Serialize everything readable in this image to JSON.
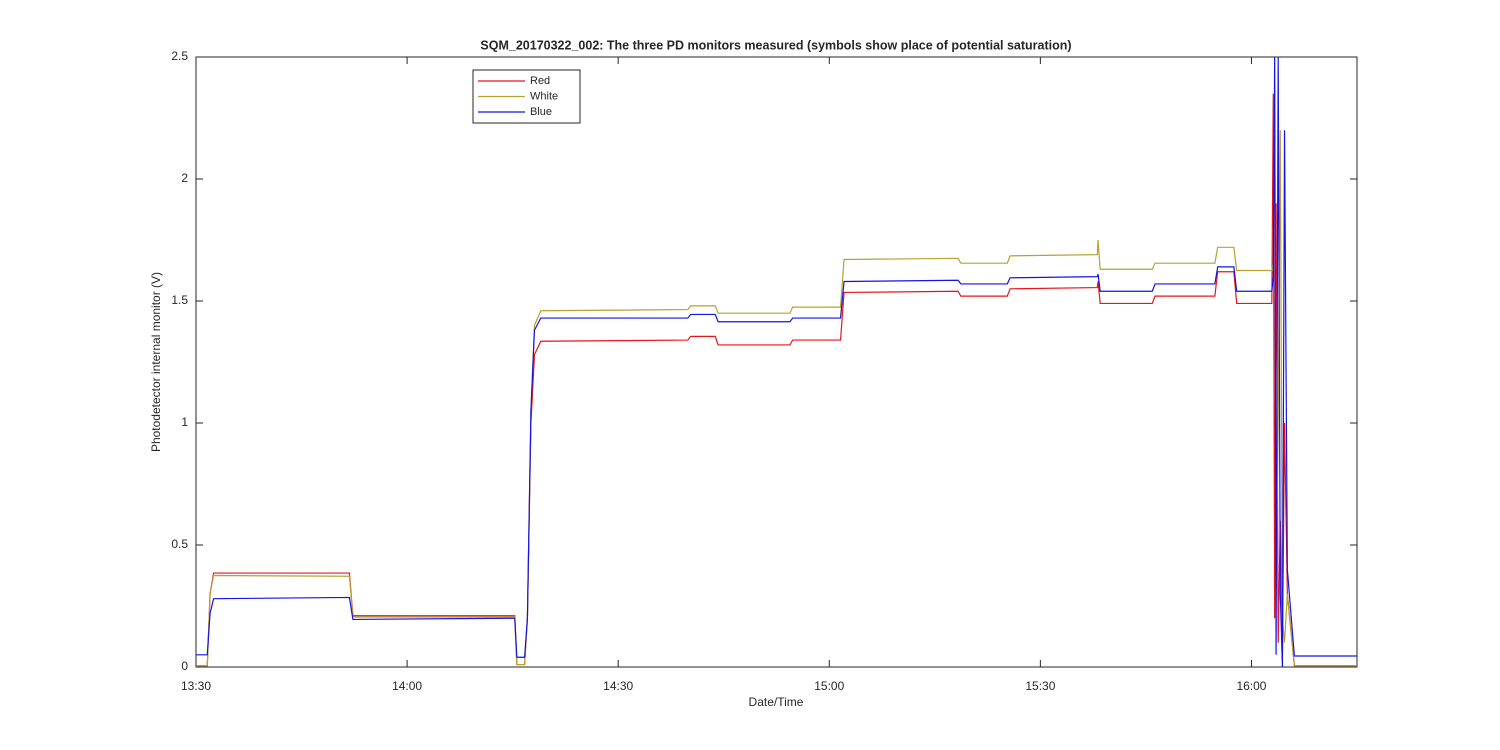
{
  "chart_data": {
    "type": "line",
    "title": "SQM_20170322_002: The three PD monitors measured (symbols show place of potential saturation)",
    "xlabel": "Date/Time",
    "ylabel": "Photodetector internal monitor (V)",
    "x": [
      810,
      811.6,
      812.0,
      812.5,
      831.8,
      832.3,
      855.3,
      855.6,
      856.7,
      857.1,
      857.6,
      858.1,
      859.0,
      879.9,
      880.3,
      883.8,
      884.2,
      894.4,
      894.8,
      901.6,
      902.1,
      918.3,
      918.7,
      925.3,
      925.7,
      938.1,
      938.2,
      938.5,
      945.9,
      946.3,
      954.8,
      955.2,
      957.5,
      957.9,
      962.9,
      963.1,
      963.3,
      963.5,
      963.8,
      964.1,
      964.4,
      964.7,
      965.1,
      966.1,
      975
    ],
    "series": [
      {
        "name": "Red",
        "color": "#e8141c",
        "values": [
          0.005,
          0.005,
          0.3,
          0.385,
          0.385,
          0.21,
          0.21,
          0.01,
          0.01,
          0.2,
          1.0,
          1.28,
          1.335,
          1.34,
          1.355,
          1.355,
          1.32,
          1.32,
          1.34,
          1.34,
          1.535,
          1.54,
          1.52,
          1.52,
          1.55,
          1.555,
          1.58,
          1.49,
          1.49,
          1.52,
          1.52,
          1.62,
          1.62,
          1.49,
          1.49,
          2.35,
          0.2,
          1.9,
          0.1,
          0.6,
          0.05,
          1.0,
          0.3,
          0.005,
          0.005
        ]
      },
      {
        "name": "White",
        "color": "#b8a131",
        "values": [
          0.005,
          0.005,
          0.3,
          0.375,
          0.372,
          0.205,
          0.205,
          0.01,
          0.01,
          0.2,
          1.05,
          1.4,
          1.46,
          1.465,
          1.48,
          1.48,
          1.45,
          1.45,
          1.475,
          1.475,
          1.67,
          1.675,
          1.655,
          1.655,
          1.685,
          1.69,
          1.75,
          1.63,
          1.63,
          1.655,
          1.655,
          1.72,
          1.72,
          1.625,
          1.625,
          1.66,
          2.38,
          0.3,
          1.0,
          2.2,
          0.2,
          0.1,
          0.3,
          0.005,
          0.005
        ]
      },
      {
        "name": "Blue",
        "color": "#1414e6",
        "values": [
          0.05,
          0.05,
          0.22,
          0.28,
          0.285,
          0.195,
          0.2,
          0.04,
          0.04,
          0.2,
          1.05,
          1.38,
          1.43,
          1.43,
          1.445,
          1.445,
          1.415,
          1.415,
          1.43,
          1.43,
          1.58,
          1.585,
          1.57,
          1.57,
          1.595,
          1.6,
          1.61,
          1.54,
          1.54,
          1.57,
          1.57,
          1.64,
          1.64,
          1.54,
          1.54,
          1.6,
          2.5,
          0.05,
          2.5,
          0.3,
          0.0,
          2.2,
          0.4,
          0.045,
          0.045
        ]
      }
    ],
    "xlim": [
      810,
      975
    ],
    "xticks": [
      {
        "value": 810,
        "label": "13:30"
      },
      {
        "value": 840,
        "label": "14:00"
      },
      {
        "value": 870,
        "label": "14:30"
      },
      {
        "value": 900,
        "label": "15:00"
      },
      {
        "value": 930,
        "label": "15:30"
      },
      {
        "value": 960,
        "label": "16:00"
      }
    ],
    "ylim": [
      0,
      2.5
    ],
    "yticks": [
      0,
      0.5,
      1,
      1.5,
      2,
      2.5
    ]
  }
}
